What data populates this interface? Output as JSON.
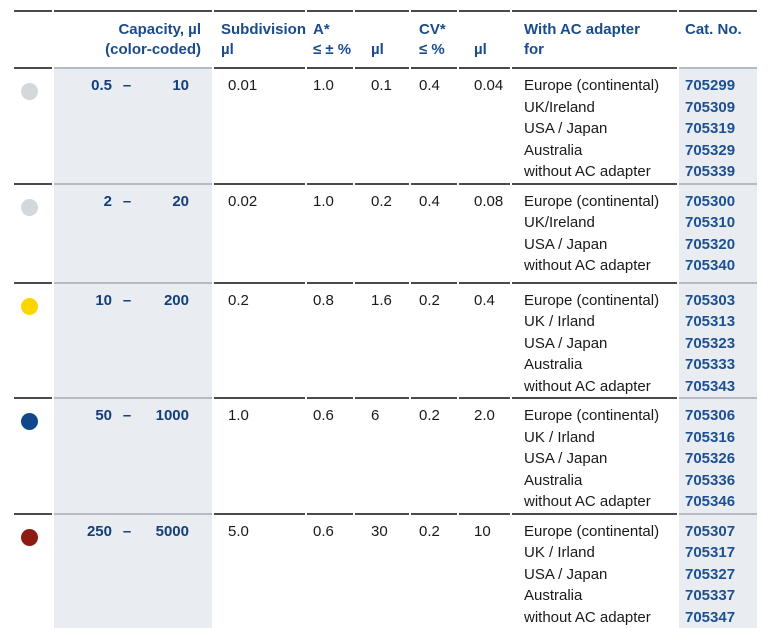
{
  "colors": {
    "header_blue": "#1a4c8c",
    "capacity_blue": "#143e79",
    "catno_blue": "#1d5092",
    "shade_bg": "#e9edf2",
    "divider_dark": "#4a4a4a",
    "divider_light": "#b4bbc4",
    "dot_gray": "#d4d8db",
    "dot_yellow": "#ffd500",
    "dot_blue": "#11488c",
    "dot_red": "#8e1b11"
  },
  "table": {
    "headers": {
      "capacity_line1": "Capacity, µl",
      "capacity_line2": "(color-coded)",
      "subdivision_line1": "Subdivision",
      "subdivision_line2": "µl",
      "accuracy_line1": "A*",
      "accuracy_line2": "≤ ± %",
      "accuracy_ul": "µl",
      "cv_line1": "CV*",
      "cv_line2": "≤ %",
      "cv_ul": "µl",
      "adapter_line1": "With AC adapter",
      "adapter_line2": "for",
      "cat_no": "Cat. No."
    },
    "rows": [
      {
        "dot_color": "#d4d8db",
        "dot_name": "gray",
        "cap_min": "0.5",
        "dash": "–",
        "cap_max": "10",
        "subdivision": "0.01",
        "accuracy_pct": "1.0",
        "accuracy_ul": "0.1",
        "cv_pct": "0.4",
        "cv_ul": "0.04",
        "adapters": [
          "Europe (continental)",
          "UK/Ireland",
          "USA / Japan",
          "Australia",
          "without AC adapter"
        ],
        "cat_nos": [
          "705299",
          "705309",
          "705319",
          "705329",
          "705339"
        ]
      },
      {
        "dot_color": "#d4d8db",
        "dot_name": "gray",
        "cap_min": "2",
        "dash": "–",
        "cap_max": "20",
        "subdivision": "0.02",
        "accuracy_pct": "1.0",
        "accuracy_ul": "0.2",
        "cv_pct": "0.4",
        "cv_ul": "0.08",
        "adapters": [
          "Europe (continental)",
          "UK/Ireland",
          "USA / Japan",
          "without AC adapter"
        ],
        "cat_nos": [
          "705300",
          "705310",
          "705320",
          "705340"
        ]
      },
      {
        "dot_color": "#ffd500",
        "dot_name": "yellow",
        "cap_min": "10",
        "dash": "–",
        "cap_max": "200",
        "subdivision": "0.2",
        "accuracy_pct": "0.8",
        "accuracy_ul": "1.6",
        "cv_pct": "0.2",
        "cv_ul": "0.4",
        "adapters": [
          "Europe (continental)",
          "UK / Irland",
          "USA / Japan",
          "Australia",
          "without AC adapter"
        ],
        "cat_nos": [
          "705303",
          "705313",
          "705323",
          "705333",
          "705343"
        ]
      },
      {
        "dot_color": "#11488c",
        "dot_name": "blue",
        "cap_min": "50",
        "dash": "–",
        "cap_max": "1000",
        "subdivision": "1.0",
        "accuracy_pct": "0.6",
        "accuracy_ul": "6",
        "cv_pct": "0.2",
        "cv_ul": "2.0",
        "adapters": [
          "Europe (continental)",
          "UK / Irland",
          "USA / Japan",
          "Australia",
          "without AC adapter"
        ],
        "cat_nos": [
          "705306",
          "705316",
          "705326",
          "705336",
          "705346"
        ]
      },
      {
        "dot_color": "#8e1b11",
        "dot_name": "red",
        "cap_min": "250",
        "dash": "–",
        "cap_max": "5000",
        "subdivision": "5.0",
        "accuracy_pct": "0.6",
        "accuracy_ul": "30",
        "cv_pct": "0.2",
        "cv_ul": "10",
        "adapters": [
          "Europe (continental)",
          "UK / Irland",
          "USA / Japan",
          "Australia",
          "without AC adapter"
        ],
        "cat_nos": [
          "705307",
          "705317",
          "705327",
          "705337",
          "705347"
        ]
      }
    ]
  }
}
